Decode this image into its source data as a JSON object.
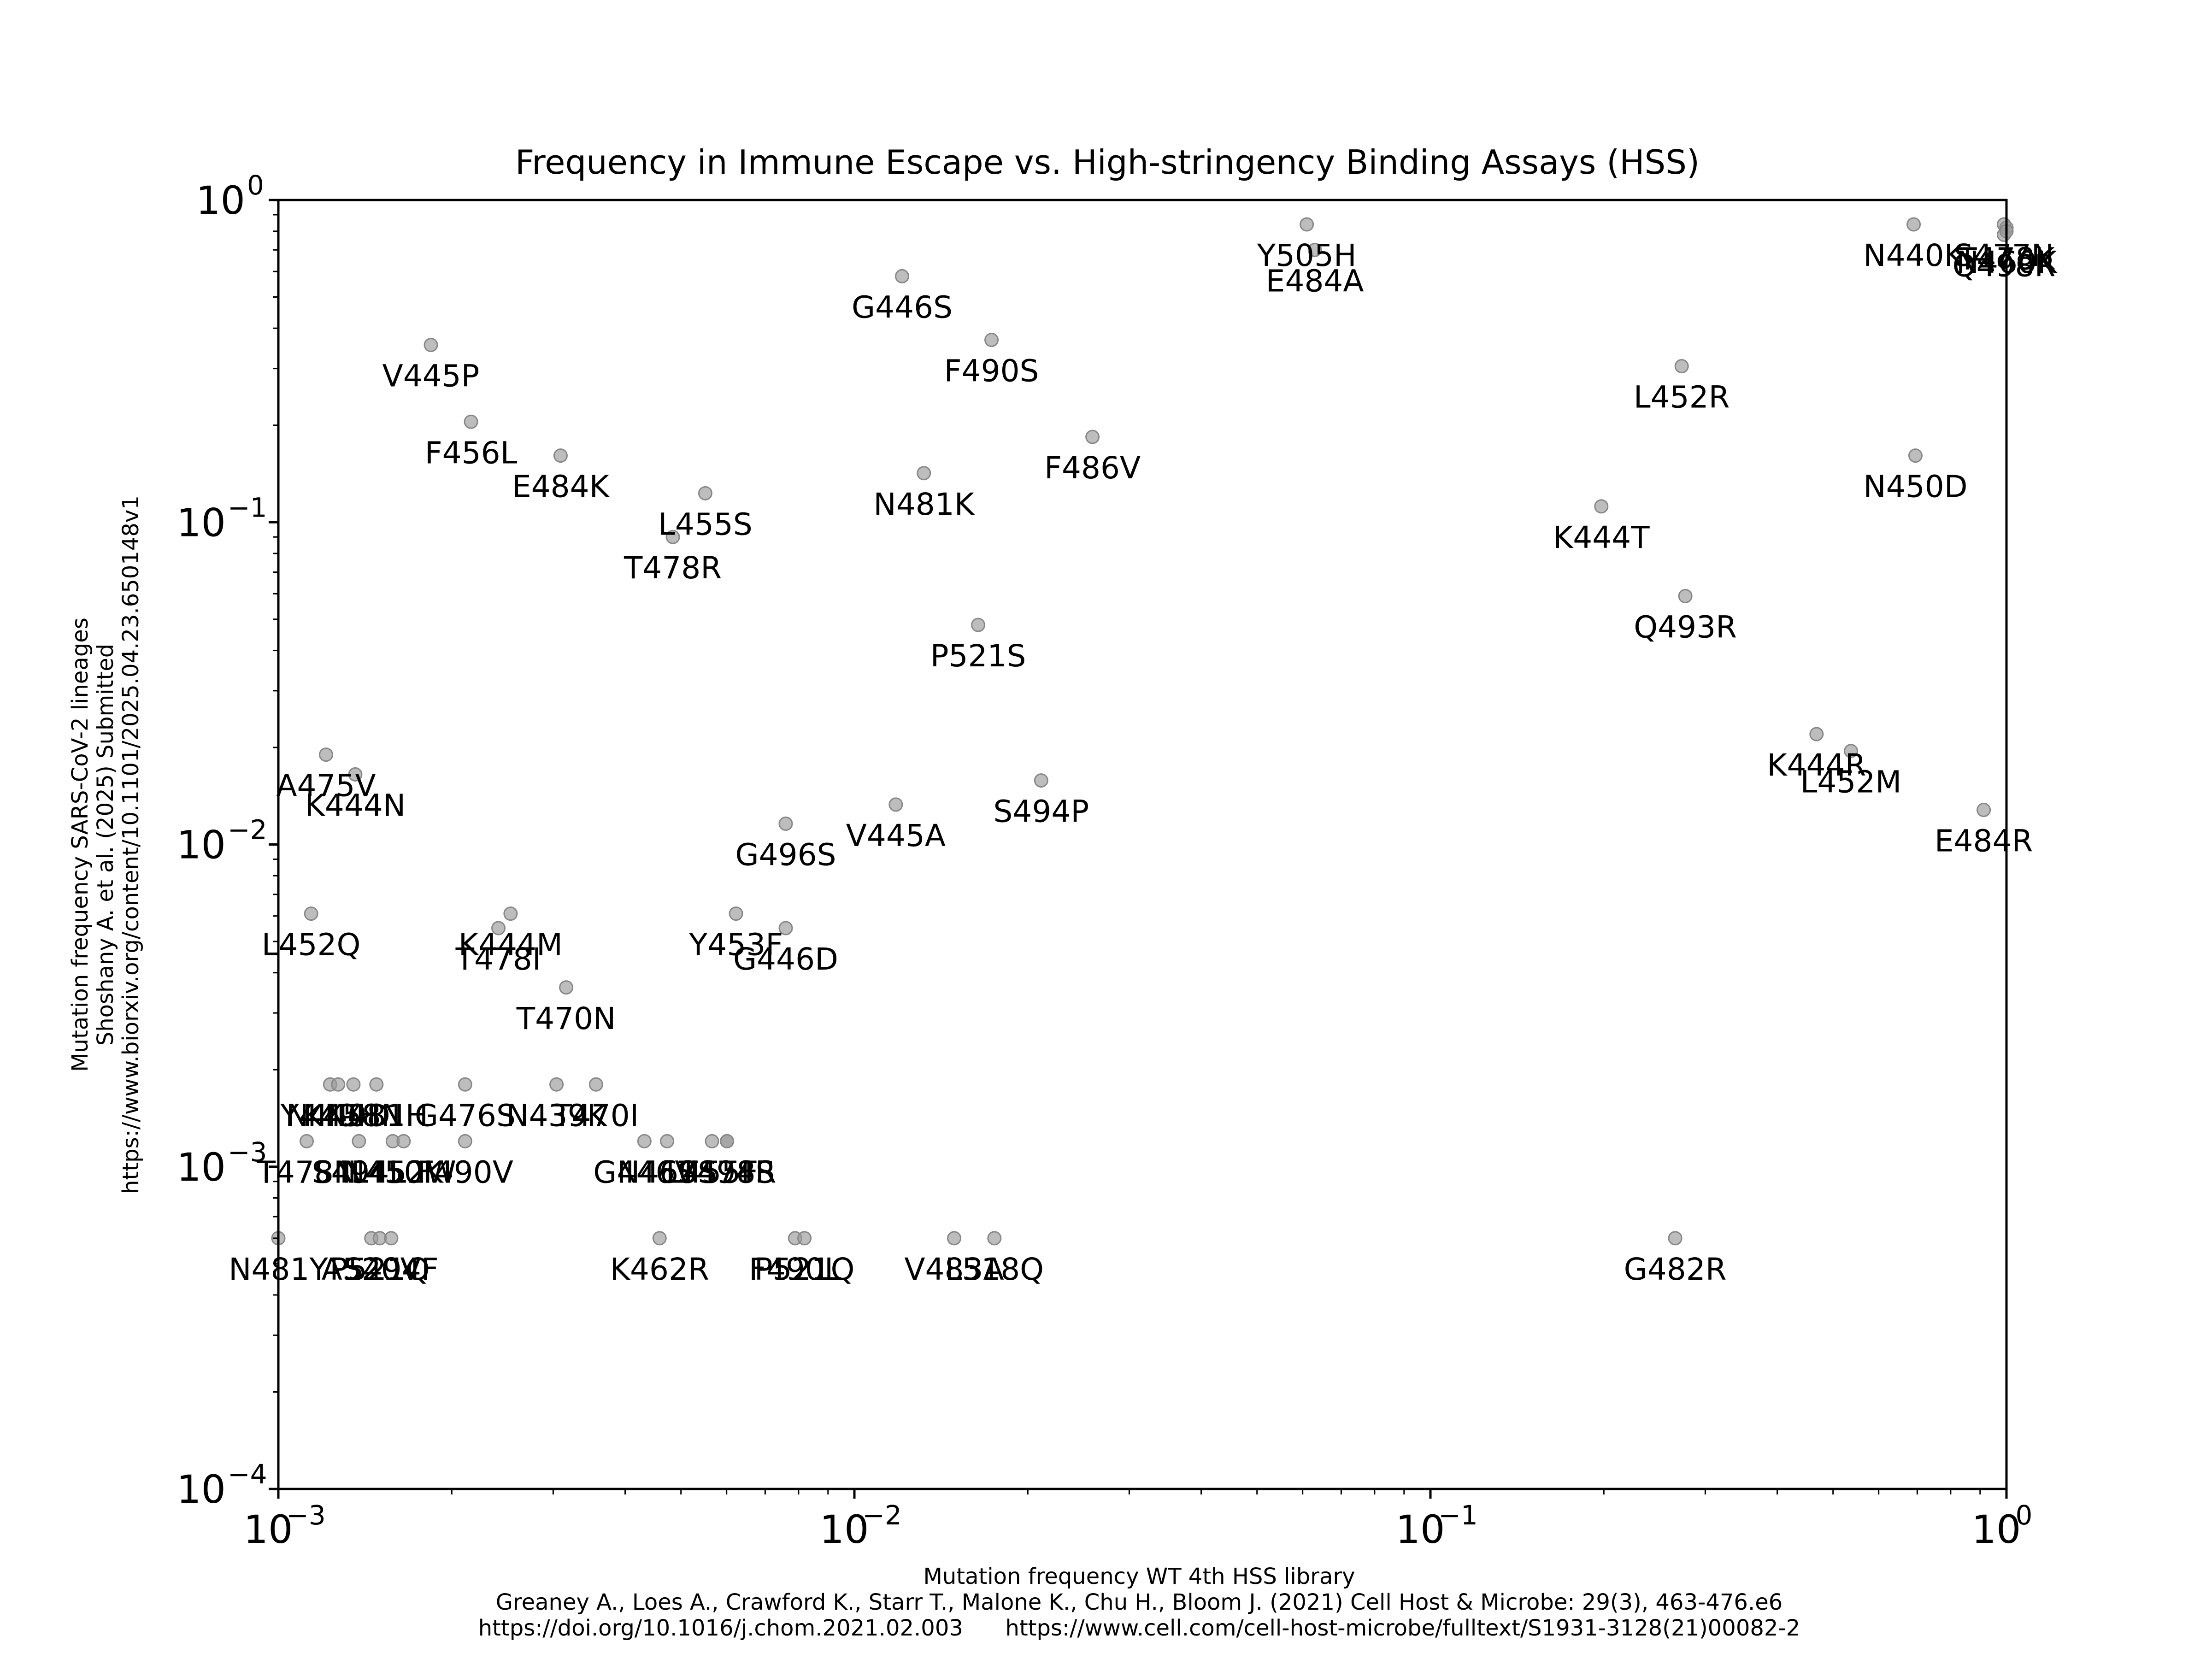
{
  "chart_data": {
    "type": "scatter",
    "title": "Frequency in Immune Escape vs. High-stringency Binding Assays (HSS)",
    "xlabel": [
      "Mutation frequency WT 4th HSS library",
      "Greaney A., Loes A., Crawford K., Starr T., Malone K., Chu H., Bloom J. (2021) Cell Host & Microbe: 29(3), 463-476.e6",
      "https://doi.org/10.1016/j.chom.2021.02.003      https://www.cell.com/cell-host-microbe/fulltext/S1931-3128(21)00082-2"
    ],
    "ylabel": [
      "Mutation frequency SARS-CoV-2 lineages",
      "Shoshany A. et al. (2025) Submitted",
      "https://www.biorxiv.org/content/10.1101/2025.04.23.650148v1"
    ],
    "xscale": "log",
    "yscale": "log",
    "xlim": [
      0.001,
      1
    ],
    "ylim": [
      0.0001,
      1
    ],
    "xticks": [
      {
        "base": "10",
        "exp": "−3",
        "value": 0.001
      },
      {
        "base": "10",
        "exp": "−2",
        "value": 0.01
      },
      {
        "base": "10",
        "exp": "−1",
        "value": 0.1
      },
      {
        "base": "10",
        "exp": "0",
        "value": 1
      }
    ],
    "yticks": [
      {
        "base": "10",
        "exp": "−4",
        "value": 0.0001
      },
      {
        "base": "10",
        "exp": "−3",
        "value": 0.001
      },
      {
        "base": "10",
        "exp": "−2",
        "value": 0.01
      },
      {
        "base": "10",
        "exp": "−1",
        "value": 0.1
      },
      {
        "base": "10",
        "exp": "0",
        "value": 1
      }
    ],
    "grid": false,
    "marker_color": "#999999",
    "points": [
      {
        "label": "Y505H",
        "x": 0.061,
        "y": 0.84
      },
      {
        "label": "E484A",
        "x": 0.063,
        "y": 0.7
      },
      {
        "label": "N440K",
        "x": 0.69,
        "y": 0.84
      },
      {
        "label": "S477N",
        "x": 0.99,
        "y": 0.84
      },
      {
        "label": "T478K",
        "x": 1.0,
        "y": 0.82
      },
      {
        "label": "Q498R",
        "x": 0.99,
        "y": 0.78
      },
      {
        "label": "N460K",
        "x": 1.0,
        "y": 0.8
      },
      {
        "label": "G446S",
        "x": 0.0121,
        "y": 0.58
      },
      {
        "label": "V445P",
        "x": 0.00184,
        "y": 0.355
      },
      {
        "label": "F490S",
        "x": 0.0173,
        "y": 0.368
      },
      {
        "label": "L452R",
        "x": 0.273,
        "y": 0.305
      },
      {
        "label": "F456L",
        "x": 0.00216,
        "y": 0.205
      },
      {
        "label": "F486V",
        "x": 0.0259,
        "y": 0.184
      },
      {
        "label": "E484K",
        "x": 0.00309,
        "y": 0.161
      },
      {
        "label": "N450D",
        "x": 0.695,
        "y": 0.161
      },
      {
        "label": "N481K",
        "x": 0.0132,
        "y": 0.142
      },
      {
        "label": "L455S",
        "x": 0.00551,
        "y": 0.123
      },
      {
        "label": "K444T",
        "x": 0.198,
        "y": 0.112
      },
      {
        "label": "T478R",
        "x": 0.00484,
        "y": 0.09
      },
      {
        "label": "Q493R",
        "x": 0.277,
        "y": 0.059
      },
      {
        "label": "P521S",
        "x": 0.0164,
        "y": 0.048
      },
      {
        "label": "K444R",
        "x": 0.468,
        "y": 0.022
      },
      {
        "label": "L452M",
        "x": 0.537,
        "y": 0.0195
      },
      {
        "label": "A475V",
        "x": 0.00121,
        "y": 0.019
      },
      {
        "label": "K444N",
        "x": 0.00136,
        "y": 0.0165
      },
      {
        "label": "S494P",
        "x": 0.0211,
        "y": 0.0158
      },
      {
        "label": "V445A",
        "x": 0.0118,
        "y": 0.0133
      },
      {
        "label": "E484R",
        "x": 0.913,
        "y": 0.0128
      },
      {
        "label": "G496S",
        "x": 0.0076,
        "y": 0.0116
      },
      {
        "label": "L452Q",
        "x": 0.00114,
        "y": 0.0061
      },
      {
        "label": "Y453F",
        "x": 0.00623,
        "y": 0.0061
      },
      {
        "label": "K444M",
        "x": 0.00253,
        "y": 0.0061
      },
      {
        "label": "T478I",
        "x": 0.00241,
        "y": 0.0055
      },
      {
        "label": "G446D",
        "x": 0.0076,
        "y": 0.0055
      },
      {
        "label": "T470N",
        "x": 0.00316,
        "y": 0.0036
      },
      {
        "label": "Y449H",
        "x": 0.00123,
        "y": 0.0018
      },
      {
        "label": "N440D",
        "x": 0.00127,
        "y": 0.0018
      },
      {
        "label": "K458N",
        "x": 0.00135,
        "y": 0.0018
      },
      {
        "label": "N481H",
        "x": 0.00148,
        "y": 0.0018
      },
      {
        "label": "G476S",
        "x": 0.00211,
        "y": 0.0018
      },
      {
        "label": "N439K",
        "x": 0.00304,
        "y": 0.0018
      },
      {
        "label": "T470I",
        "x": 0.00356,
        "y": 0.0018
      },
      {
        "label": "T478N",
        "x": 0.00112,
        "y": 0.0012
      },
      {
        "label": "S494L",
        "x": 0.00138,
        "y": 0.0012
      },
      {
        "label": "N450K",
        "x": 0.00158,
        "y": 0.0012
      },
      {
        "label": "L452W",
        "x": 0.00165,
        "y": 0.0012
      },
      {
        "label": "F490V",
        "x": 0.00211,
        "y": 0.0012
      },
      {
        "label": "G446V",
        "x": 0.00432,
        "y": 0.0012
      },
      {
        "label": "N460S",
        "x": 0.00473,
        "y": 0.0012
      },
      {
        "label": "L455F",
        "x": 0.00566,
        "y": 0.0012
      },
      {
        "label": "T478S",
        "x": 0.00601,
        "y": 0.0012
      },
      {
        "label": "S494R",
        "x": 0.00601,
        "y": 0.0012
      },
      {
        "label": "N481Y",
        "x": 0.001,
        "y": 0.0006
      },
      {
        "label": "A520V",
        "x": 0.00145,
        "y": 0.0006
      },
      {
        "label": "P521Q",
        "x": 0.0015,
        "y": 0.0006
      },
      {
        "label": "S494F",
        "x": 0.00157,
        "y": 0.0006
      },
      {
        "label": "K462R",
        "x": 0.00459,
        "y": 0.0006
      },
      {
        "label": "F490L",
        "x": 0.00789,
        "y": 0.0006
      },
      {
        "label": "P521Q",
        "x": 0.00819,
        "y": 0.0006
      },
      {
        "label": "V483A",
        "x": 0.0149,
        "y": 0.0006
      },
      {
        "label": "L518Q",
        "x": 0.0175,
        "y": 0.0006
      },
      {
        "label": "G482R",
        "x": 0.266,
        "y": 0.0006
      }
    ]
  }
}
